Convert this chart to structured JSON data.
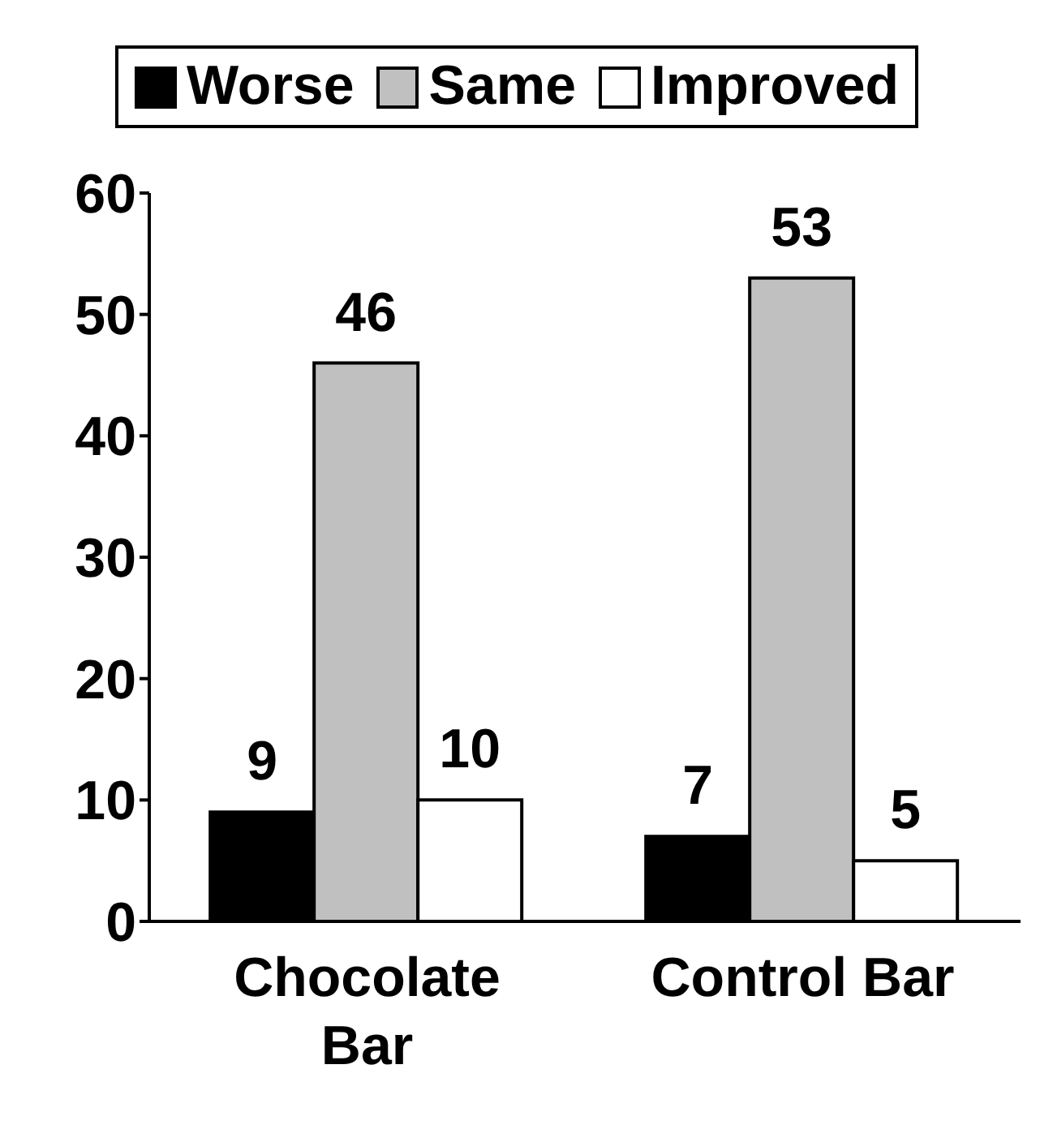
{
  "chart_data": {
    "type": "bar",
    "categories": [
      "Chocolate Bar",
      "Control Bar"
    ],
    "series": [
      {
        "name": "Worse",
        "color": "#000000",
        "values": [
          9,
          7
        ]
      },
      {
        "name": "Same",
        "color": "#c0c0c0",
        "values": [
          46,
          53
        ]
      },
      {
        "name": "Improved",
        "color": "#ffffff",
        "values": [
          10,
          5
        ]
      }
    ],
    "ylim": [
      0,
      60
    ],
    "yticks": [
      0,
      10,
      20,
      30,
      40,
      50,
      60
    ],
    "grid": false,
    "legend": "top",
    "data_labels": true
  }
}
